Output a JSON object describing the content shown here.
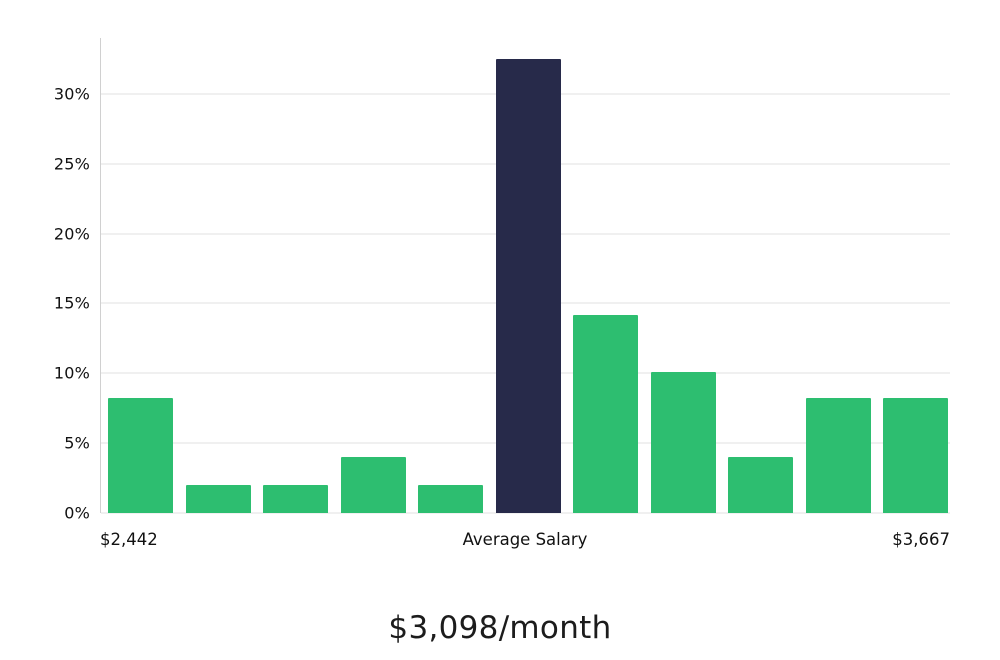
{
  "chart_data": {
    "type": "bar",
    "subtype": "salary-distribution-histogram",
    "categories": [
      "bin-1",
      "bin-2",
      "bin-3",
      "bin-4",
      "bin-5",
      "average-salary",
      "bin-7",
      "bin-8",
      "bin-9",
      "bin-10",
      "bin-11"
    ],
    "values": [
      8.2,
      2.0,
      2.0,
      4.0,
      2.0,
      32.5,
      14.2,
      10.1,
      4.0,
      8.2,
      8.2
    ],
    "highlight_index": 5,
    "bar_color": "#2dbe70",
    "highlight_color": "#272a4a",
    "grid": true,
    "gridline_color": "#e2e2e2",
    "legend": "none",
    "ylim": [
      0,
      34
    ],
    "y_ticks": [
      0,
      5,
      10,
      15,
      20,
      25,
      30
    ],
    "y_tick_labels": [
      "0%",
      "5%",
      "10%",
      "15%",
      "20%",
      "25%",
      "30%"
    ],
    "x_axis_labels": {
      "left": "$2,442",
      "center": "Average Salary",
      "right": "$3,667"
    },
    "title": "$3,098/month",
    "xlabel": "",
    "ylabel": ""
  },
  "caption": "$3,098/month"
}
